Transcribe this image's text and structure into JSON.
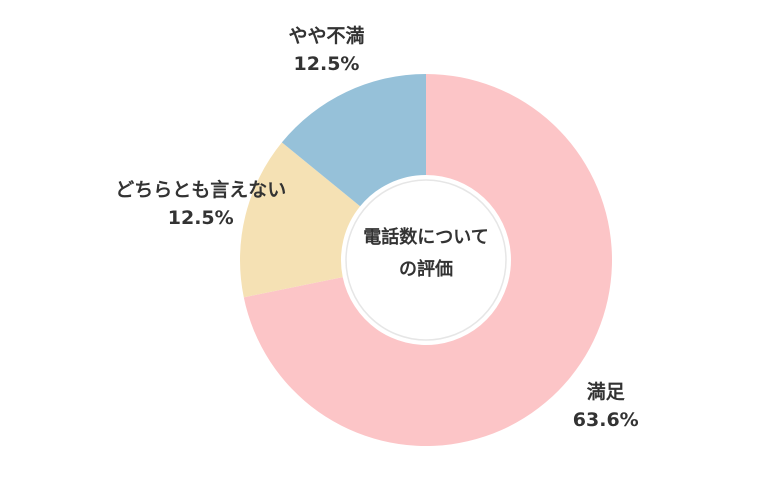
{
  "chart_data": {
    "type": "donut",
    "title": "電話数についての評価",
    "categories": [
      "満足",
      "どちらとも言えない",
      "やや不満"
    ],
    "values": [
      63.6,
      12.5,
      12.5
    ],
    "value_labels": [
      "63.6%",
      "12.5%",
      "12.5%"
    ],
    "colors": [
      "#fcc5c7",
      "#f5e1b4",
      "#96c1d9"
    ]
  }
}
